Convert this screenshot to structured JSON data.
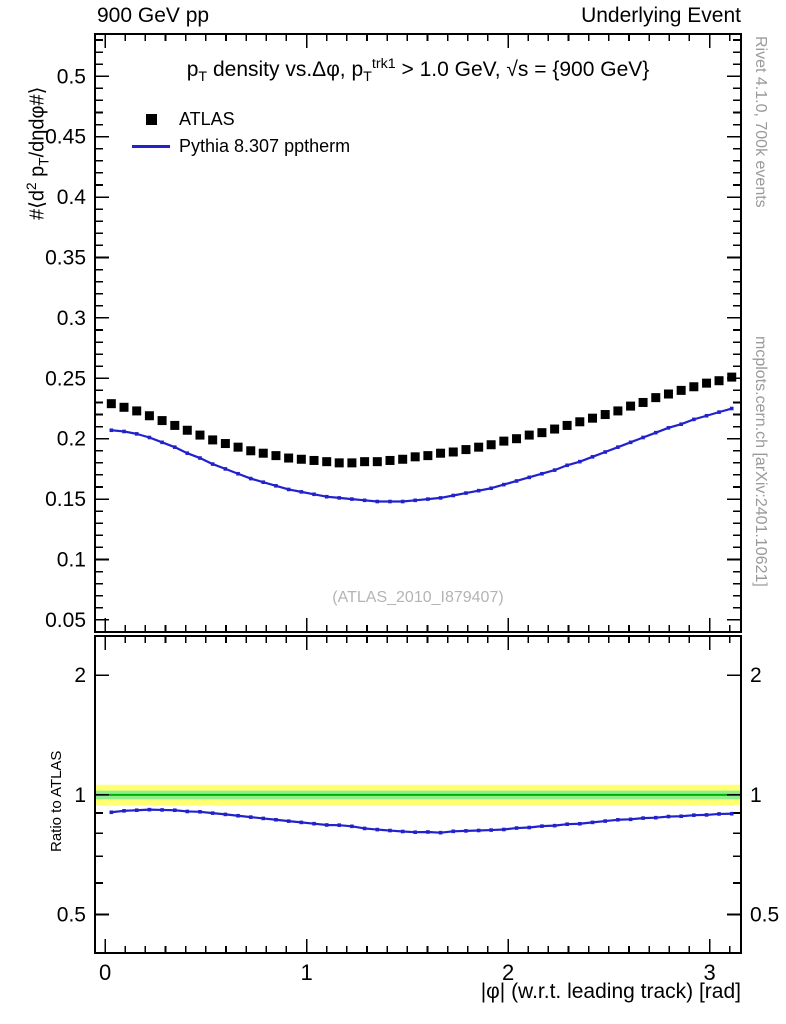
{
  "header": {
    "left": "900 GeV pp",
    "right": "Underlying Event"
  },
  "main_panel": {
    "title_segments": [
      {
        "t": "p"
      },
      {
        "t": "T",
        "m": "sub"
      },
      {
        "t": " density vs.Δφ, p"
      },
      {
        "t": "T",
        "m": "sub"
      },
      {
        "t": "trk1",
        "m": "sup"
      },
      {
        "t": " > 1.0 GeV, √s = {900 GeV}"
      }
    ],
    "ylabel_segments": [
      {
        "t": "#⟨d"
      },
      {
        "t": "2",
        "m": "sup"
      },
      {
        "t": " p"
      },
      {
        "t": "T",
        "m": "sub"
      },
      {
        "t": "/dηdφ#⟩"
      }
    ],
    "yticks": [
      0.05,
      0.1,
      0.15,
      0.2,
      0.25,
      0.3,
      0.35,
      0.4,
      0.45,
      0.5
    ]
  },
  "ratio_panel": {
    "ylabel": "Ratio to ATLAS",
    "yticks": [
      0.5,
      1,
      2
    ],
    "yminors": [
      0.4,
      0.6,
      0.7,
      0.8,
      0.9
    ],
    "band": {
      "outer_lo": 0.94,
      "outer_hi": 1.06,
      "inner_lo": 0.975,
      "inner_hi": 1.025,
      "outer_color": "#ffff72",
      "inner_color": "#8df08d",
      "line_color": "#00b000"
    }
  },
  "xaxis": {
    "ticks": [
      0,
      1,
      2,
      3
    ],
    "label": "|φ| (w.r.t. leading track) [rad]"
  },
  "legend": {
    "items": [
      {
        "label": "ATLAS",
        "swatch": "square",
        "color": "#000000"
      },
      {
        "label": "Pythia 8.307 pptherm",
        "swatch": "line",
        "color": "#2222cc"
      }
    ]
  },
  "watermark": "(ATLAS_2010_I879407)",
  "side_texts": {
    "top_right": "Rivet 4.1.0,  700k events",
    "bottom_right": "mcplots.cern.ch [arXiv:2401.10621]"
  },
  "chart_data": {
    "type": "line",
    "title": "pT density vs. Δφ, pT(trk1) > 1.0 GeV, √s = {900 GeV}",
    "xlabel": "|φ| (w.r.t. leading track) [rad]",
    "ylabel": "#⟨d2 pT/dηdφ#⟩",
    "xlim": [
      -0.05,
      3.156
    ],
    "main_ylim": [
      0.04,
      0.535
    ],
    "ratio_ylim": [
      0.4,
      2.51
    ],
    "ratio_scale": "log",
    "grid": false,
    "legend_position": "top-left",
    "x": [
      0.031,
      0.094,
      0.157,
      0.22,
      0.283,
      0.346,
      0.408,
      0.471,
      0.534,
      0.597,
      0.66,
      0.723,
      0.785,
      0.848,
      0.911,
      0.974,
      1.037,
      1.1,
      1.162,
      1.225,
      1.288,
      1.351,
      1.414,
      1.477,
      1.539,
      1.602,
      1.665,
      1.728,
      1.791,
      1.854,
      1.916,
      1.979,
      2.042,
      2.105,
      2.168,
      2.231,
      2.293,
      2.356,
      2.419,
      2.482,
      2.545,
      2.608,
      2.67,
      2.733,
      2.796,
      2.859,
      2.922,
      2.985,
      3.047,
      3.11
    ],
    "series": [
      {
        "name": "ATLAS",
        "marker": "square",
        "color": "#000000",
        "values": [
          0.229,
          0.226,
          0.223,
          0.219,
          0.215,
          0.211,
          0.207,
          0.203,
          0.199,
          0.196,
          0.193,
          0.19,
          0.188,
          0.186,
          0.184,
          0.183,
          0.182,
          0.181,
          0.18,
          0.18,
          0.181,
          0.181,
          0.182,
          0.183,
          0.185,
          0.186,
          0.188,
          0.189,
          0.191,
          0.193,
          0.195,
          0.198,
          0.2,
          0.203,
          0.205,
          0.208,
          0.211,
          0.214,
          0.217,
          0.22,
          0.223,
          0.227,
          0.23,
          0.234,
          0.237,
          0.24,
          0.243,
          0.246,
          0.248,
          0.251
        ]
      },
      {
        "name": "Pythia 8.307 pptherm",
        "marker": "dot",
        "color": "#2222cc",
        "values": [
          0.207,
          0.206,
          0.204,
          0.201,
          0.197,
          0.193,
          0.188,
          0.184,
          0.179,
          0.175,
          0.171,
          0.167,
          0.164,
          0.161,
          0.158,
          0.156,
          0.154,
          0.152,
          0.151,
          0.15,
          0.149,
          0.148,
          0.148,
          0.148,
          0.149,
          0.15,
          0.151,
          0.153,
          0.155,
          0.157,
          0.159,
          0.162,
          0.165,
          0.168,
          0.171,
          0.174,
          0.178,
          0.181,
          0.185,
          0.189,
          0.193,
          0.197,
          0.201,
          0.205,
          0.209,
          0.212,
          0.216,
          0.219,
          0.222,
          0.225
        ]
      }
    ],
    "ratio": {
      "definition": "Pythia / ATLAS",
      "band_outer": [
        0.94,
        1.06
      ],
      "band_inner": [
        0.975,
        1.025
      ]
    }
  }
}
